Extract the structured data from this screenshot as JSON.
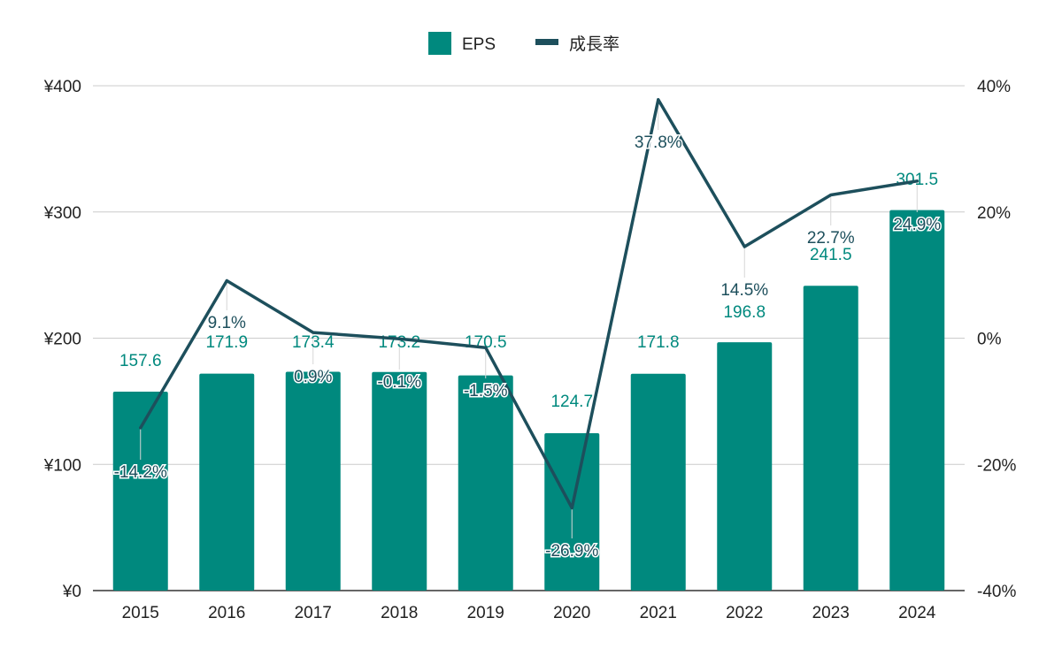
{
  "chart_data": {
    "type": "bar+line",
    "categories": [
      "2015",
      "2016",
      "2017",
      "2018",
      "2019",
      "2020",
      "2021",
      "2022",
      "2023",
      "2024"
    ],
    "series": [
      {
        "name": "EPS",
        "type": "bar",
        "axis": "left",
        "color": "#00897e",
        "values": [
          157.6,
          171.9,
          173.4,
          173.2,
          170.5,
          124.7,
          171.8,
          196.8,
          241.5,
          301.5
        ],
        "labels": [
          "157.6",
          "171.9",
          "173.4",
          "173.2",
          "170.5",
          "124.7",
          "171.8",
          "196.8",
          "241.5",
          "301.5"
        ]
      },
      {
        "name": "成長率",
        "type": "line",
        "axis": "right",
        "color": "#1d4f5c",
        "values": [
          -14.2,
          9.1,
          0.9,
          -0.1,
          -1.5,
          -26.9,
          37.8,
          14.5,
          22.7,
          24.9
        ],
        "labels": [
          "-14.2%",
          "9.1%",
          "0.9%",
          "-0.1%",
          "-1.5%",
          "-26.9%",
          "37.8%",
          "14.5%",
          "22.7%",
          "24.9%"
        ]
      }
    ],
    "left_axis": {
      "min": 0,
      "max": 400,
      "ticks": [
        0,
        100,
        200,
        300,
        400
      ],
      "tick_labels": [
        "¥0",
        "¥100",
        "¥200",
        "¥300",
        "¥400"
      ]
    },
    "right_axis": {
      "min": -40,
      "max": 40,
      "ticks": [
        -40,
        -20,
        0,
        20,
        40
      ],
      "tick_labels": [
        "-40%",
        "-20%",
        "0%",
        "20%",
        "40%"
      ]
    },
    "grid": true,
    "legend": "top-center",
    "gridline_color": "#cccccc"
  }
}
